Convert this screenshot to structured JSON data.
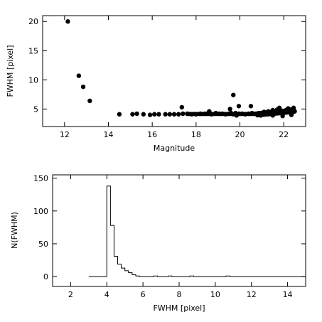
{
  "chart_data": [
    {
      "type": "scatter",
      "xlabel": "Magnitude",
      "ylabel": "FWHM [pixel]",
      "xlim": [
        11,
        23
      ],
      "ylim": [
        2,
        21
      ],
      "xticks": [
        12,
        14,
        16,
        18,
        20,
        22
      ],
      "yticks": [
        5,
        10,
        15,
        20
      ],
      "grid": false,
      "marker_color": "#000000",
      "series": [
        {
          "x": [
            12.15,
            12.65,
            12.85,
            13.15,
            14.5,
            15.1,
            15.3,
            15.6,
            15.9,
            16.1,
            16.3,
            16.6,
            16.8,
            17.0,
            17.2,
            17.4,
            17.6,
            17.8,
            18.0,
            18.2,
            18.4,
            18.55,
            18.7,
            18.9,
            19.05,
            19.2,
            19.35,
            19.5,
            19.6,
            19.7,
            19.8,
            19.95,
            20.1,
            20.25,
            20.4,
            20.55,
            20.7,
            20.85,
            21.0,
            21.1,
            21.2,
            21.3,
            21.4,
            21.5,
            21.6,
            21.7,
            21.8,
            21.9,
            22.0,
            22.1,
            22.2,
            22.3,
            22.4,
            22.5,
            17.35,
            19.7,
            19.55,
            19.95,
            20.5,
            21.8,
            22.2,
            21.5,
            22.45,
            21.95,
            18.6,
            19.85,
            20.95,
            22.35
          ],
          "y": [
            20.0,
            10.7,
            8.8,
            6.4,
            4.1,
            4.1,
            4.2,
            4.1,
            4.0,
            4.1,
            4.1,
            4.1,
            4.1,
            4.1,
            4.1,
            4.2,
            4.2,
            4.1,
            4.1,
            4.2,
            4.2,
            4.3,
            4.1,
            4.3,
            4.2,
            4.2,
            4.1,
            4.2,
            4.3,
            4.1,
            4.3,
            4.2,
            4.2,
            4.1,
            4.2,
            4.3,
            4.2,
            4.2,
            4.3,
            4.5,
            4.4,
            4.6,
            4.4,
            4.8,
            4.4,
            4.9,
            4.5,
            4.7,
            4.5,
            4.8,
            4.6,
            4.9,
            4.8,
            4.6,
            5.3,
            7.4,
            5.0,
            5.5,
            5.5,
            5.2,
            5.1,
            3.9,
            5.2,
            3.8,
            4.6,
            3.9,
            3.9,
            4.0
          ]
        }
      ]
    },
    {
      "type": "line",
      "step": true,
      "xlabel": "FWHM [pixel]",
      "ylabel": "N(FWHM)",
      "xlim": [
        1,
        15
      ],
      "ylim": [
        -15,
        155
      ],
      "xticks": [
        2,
        4,
        6,
        8,
        10,
        12,
        14
      ],
      "yticks": [
        0,
        50,
        100,
        150
      ],
      "grid": false,
      "line_color": "#000000",
      "series": [
        {
          "x": [
            3.0,
            3.8,
            4.0,
            4.2,
            4.4,
            4.6,
            4.8,
            5.0,
            5.2,
            5.4,
            5.6,
            5.8,
            6.0,
            6.2,
            6.4,
            6.6,
            6.8,
            7.0,
            7.2,
            7.4,
            7.6,
            7.8,
            8.0,
            8.6,
            8.8,
            9.0,
            10.6,
            10.8,
            11.0,
            15.0
          ],
          "y": [
            0,
            0,
            138,
            78,
            31,
            19,
            13,
            9,
            6,
            3,
            1,
            0,
            0,
            0,
            0,
            1,
            0,
            0,
            0,
            1,
            0,
            0,
            0,
            1,
            0,
            0,
            1,
            0,
            0,
            0
          ]
        }
      ]
    }
  ]
}
